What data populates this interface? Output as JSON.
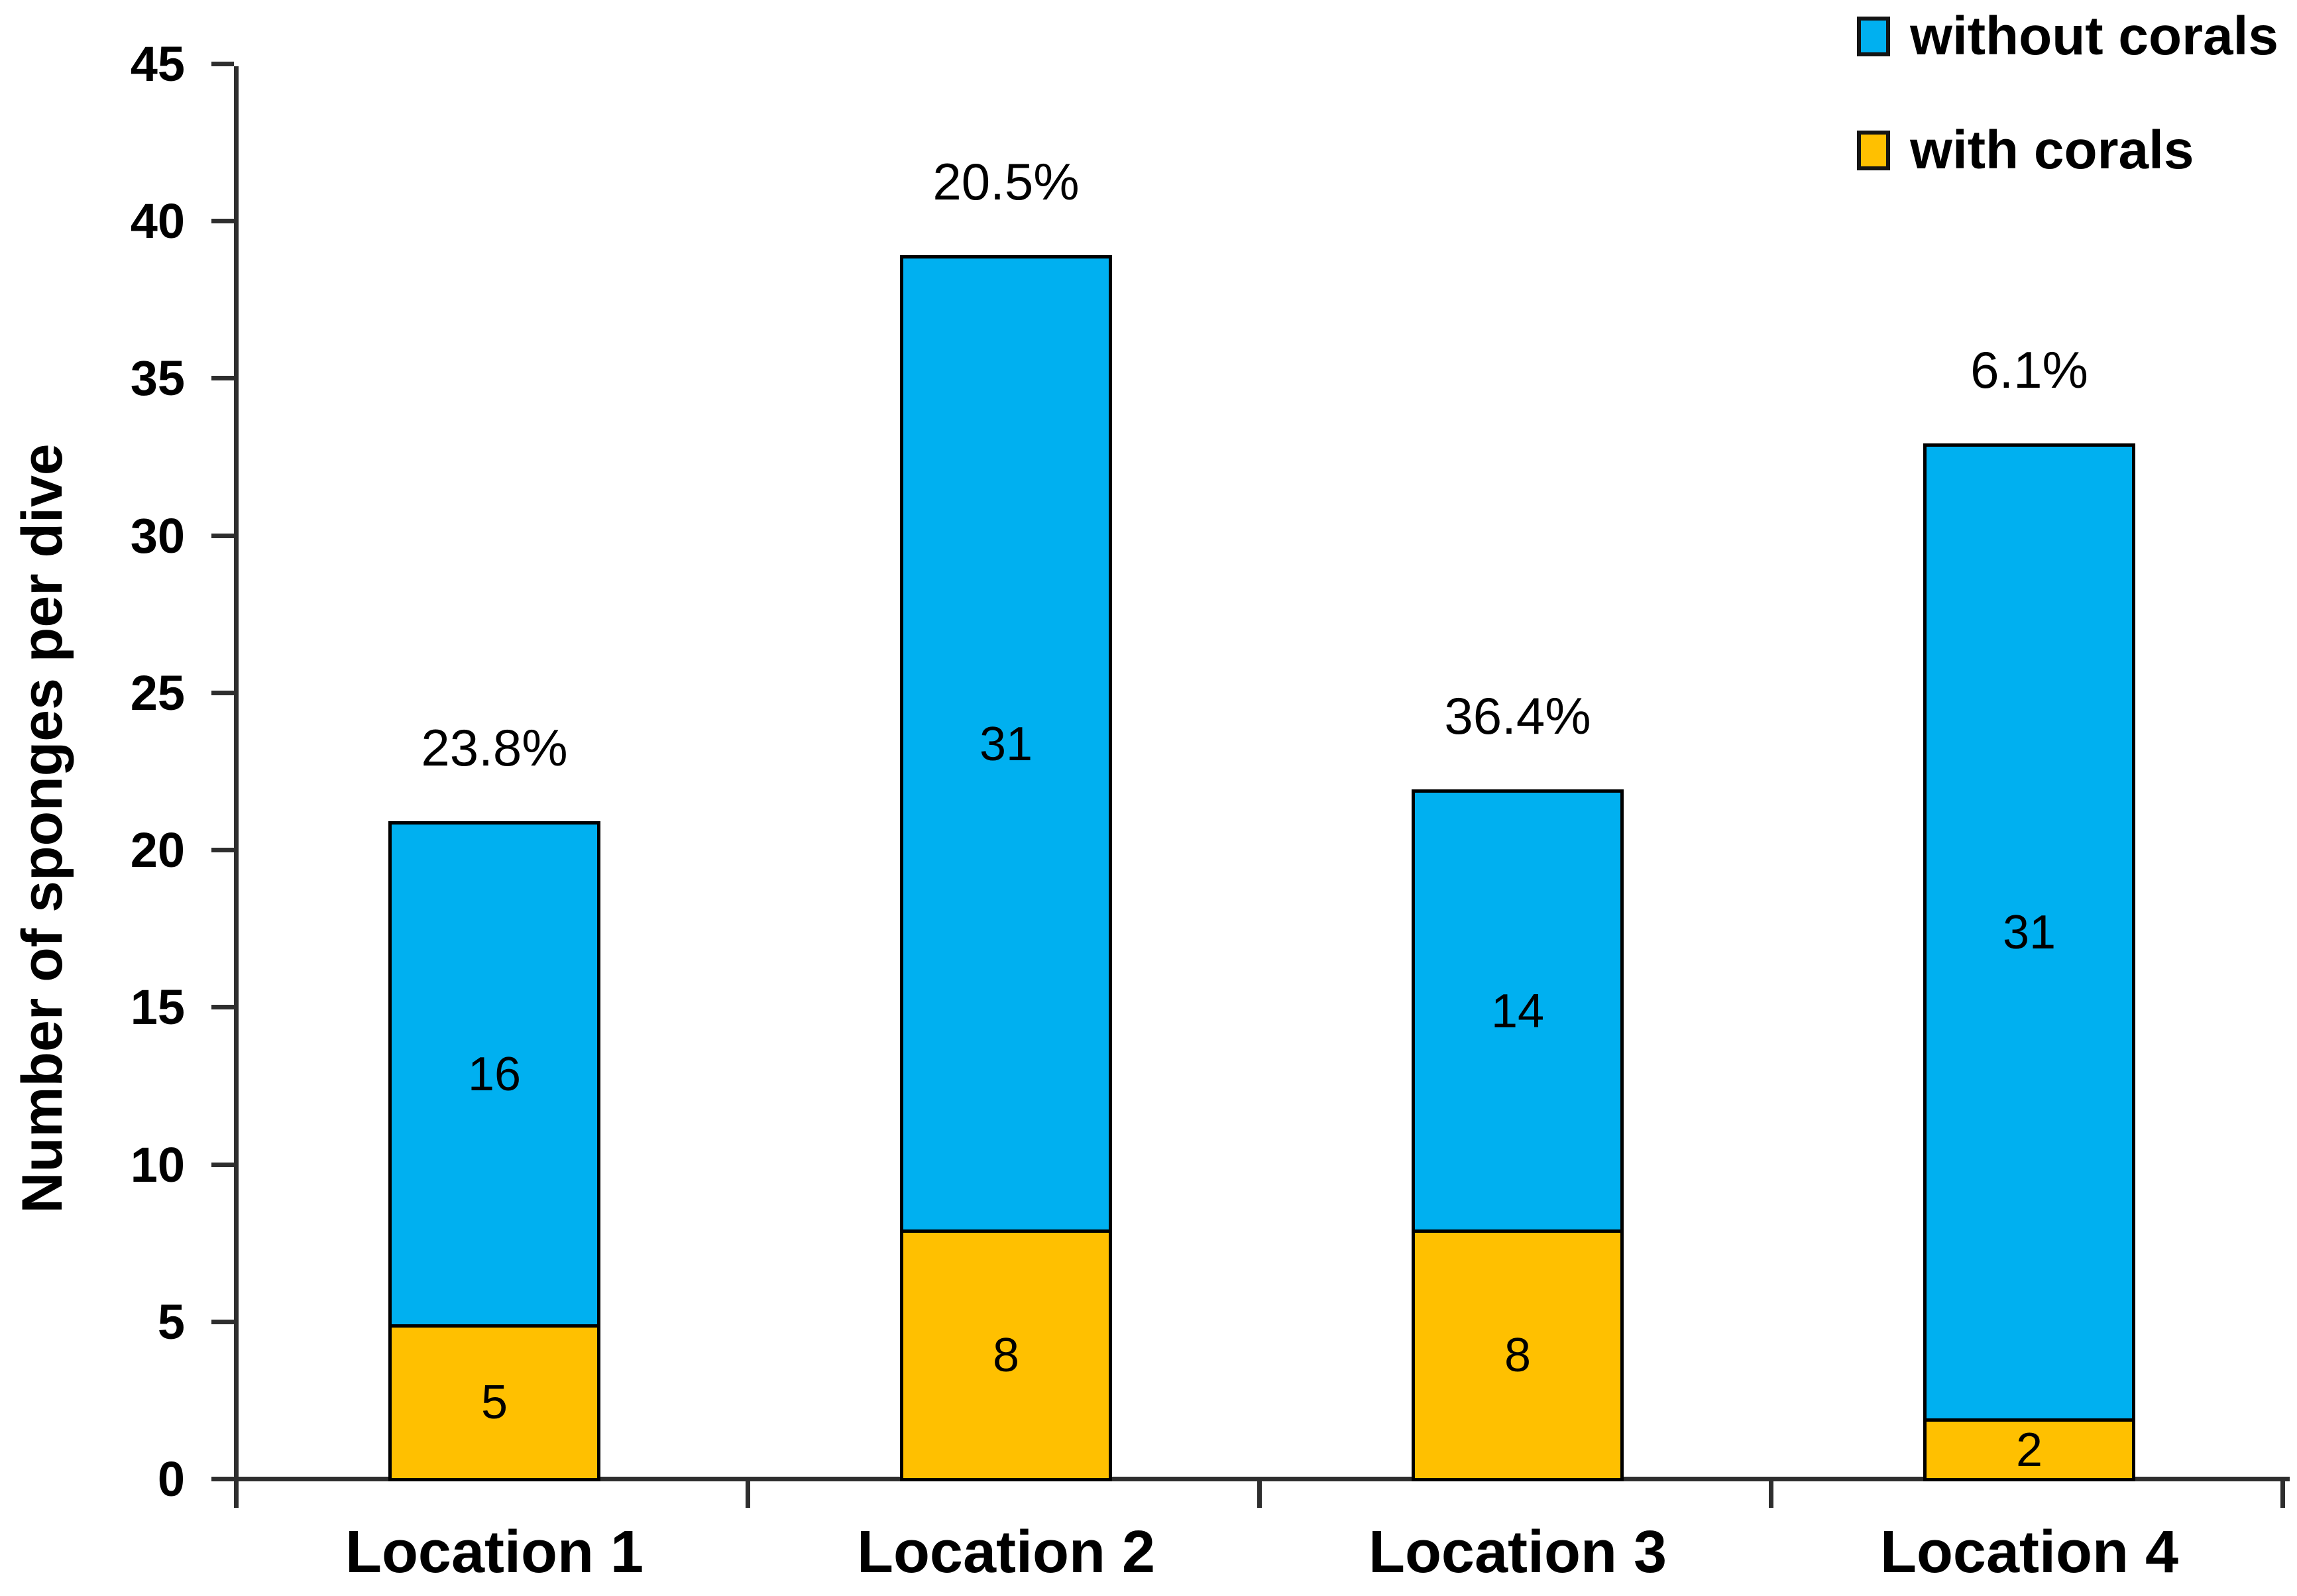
{
  "chart_data": {
    "type": "bar",
    "stacked": true,
    "title": "",
    "xlabel": "",
    "ylabel": "Number of sponges per dive",
    "categories": [
      "Location 1",
      "Location 2",
      "Location 3",
      "Location 4"
    ],
    "series": [
      {
        "name": "with corals",
        "color": "#FFC000",
        "values": [
          5,
          8,
          8,
          2
        ]
      },
      {
        "name": "without corals",
        "color": "#00B0F0",
        "values": [
          16,
          31,
          14,
          31
        ]
      }
    ],
    "totals": [
      21,
      39,
      22,
      33
    ],
    "percent_labels": [
      "23.8%",
      "20.5%",
      "36.4%",
      "6.1%"
    ],
    "ylim": [
      0,
      45
    ],
    "ytick_step": 5,
    "yticks": [
      0,
      5,
      10,
      15,
      20,
      25,
      30,
      35,
      40,
      45
    ],
    "grid": false,
    "legend_position": "top-right",
    "axis_color": "#2e2e2e",
    "bar_border_color": "#000000"
  },
  "legend": {
    "items": [
      {
        "label": "without corals",
        "color": "#00B0F0"
      },
      {
        "label": "with corals",
        "color": "#FFC000"
      }
    ]
  }
}
